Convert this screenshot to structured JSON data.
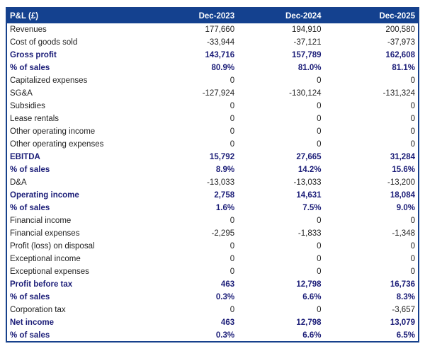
{
  "colors": {
    "header_bg": "#14418f",
    "border": "#17418c",
    "emphasis_text": "#1b1d78",
    "body_text": "#1f1f1f",
    "header_text": "#ffffff"
  },
  "table": {
    "title": "P&L (£)",
    "columns": [
      "Dec-2023",
      "Dec-2024",
      "Dec-2025"
    ],
    "rows": [
      {
        "label": "Revenues",
        "values": [
          "177,660",
          "194,910",
          "200,580"
        ],
        "bold": false
      },
      {
        "label": "Cost of goods sold",
        "values": [
          "-33,944",
          "-37,121",
          "-37,973"
        ],
        "bold": false
      },
      {
        "label": "Gross profit",
        "values": [
          "143,716",
          "157,789",
          "162,608"
        ],
        "bold": true
      },
      {
        "label": "% of sales",
        "values": [
          "80.9%",
          "81.0%",
          "81.1%"
        ],
        "bold": true
      },
      {
        "label": "Capitalized expenses",
        "values": [
          "0",
          "0",
          "0"
        ],
        "bold": false
      },
      {
        "label": "SG&A",
        "values": [
          "-127,924",
          "-130,124",
          "-131,324"
        ],
        "bold": false
      },
      {
        "label": "Subsidies",
        "values": [
          "0",
          "0",
          "0"
        ],
        "bold": false
      },
      {
        "label": "Lease rentals",
        "values": [
          "0",
          "0",
          "0"
        ],
        "bold": false
      },
      {
        "label": "Other operating income",
        "values": [
          "0",
          "0",
          "0"
        ],
        "bold": false
      },
      {
        "label": "Other operating expenses",
        "values": [
          "0",
          "0",
          "0"
        ],
        "bold": false
      },
      {
        "label": "EBITDA",
        "values": [
          "15,792",
          "27,665",
          "31,284"
        ],
        "bold": true
      },
      {
        "label": "% of sales",
        "values": [
          "8.9%",
          "14.2%",
          "15.6%"
        ],
        "bold": true
      },
      {
        "label": "D&A",
        "values": [
          "-13,033",
          "-13,033",
          "-13,200"
        ],
        "bold": false
      },
      {
        "label": "Operating income",
        "values": [
          "2,758",
          "14,631",
          "18,084"
        ],
        "bold": true
      },
      {
        "label": "% of sales",
        "values": [
          "1.6%",
          "7.5%",
          "9.0%"
        ],
        "bold": true
      },
      {
        "label": "Financial income",
        "values": [
          "0",
          "0",
          "0"
        ],
        "bold": false
      },
      {
        "label": "Financial expenses",
        "values": [
          "-2,295",
          "-1,833",
          "-1,348"
        ],
        "bold": false
      },
      {
        "label": "Profit (loss) on disposal",
        "values": [
          "0",
          "0",
          "0"
        ],
        "bold": false
      },
      {
        "label": "Exceptional income",
        "values": [
          "0",
          "0",
          "0"
        ],
        "bold": false
      },
      {
        "label": "Exceptional expenses",
        "values": [
          "0",
          "0",
          "0"
        ],
        "bold": false
      },
      {
        "label": "Profit before tax",
        "values": [
          "463",
          "12,798",
          "16,736"
        ],
        "bold": true
      },
      {
        "label": "% of sales",
        "values": [
          "0.3%",
          "6.6%",
          "8.3%"
        ],
        "bold": true
      },
      {
        "label": "Corporation tax",
        "values": [
          "0",
          "0",
          "-3,657"
        ],
        "bold": false
      },
      {
        "label": "Net income",
        "values": [
          "463",
          "12,798",
          "13,079"
        ],
        "bold": true
      },
      {
        "label": "% of sales",
        "values": [
          "0.3%",
          "6.6%",
          "6.5%"
        ],
        "bold": true
      }
    ]
  }
}
